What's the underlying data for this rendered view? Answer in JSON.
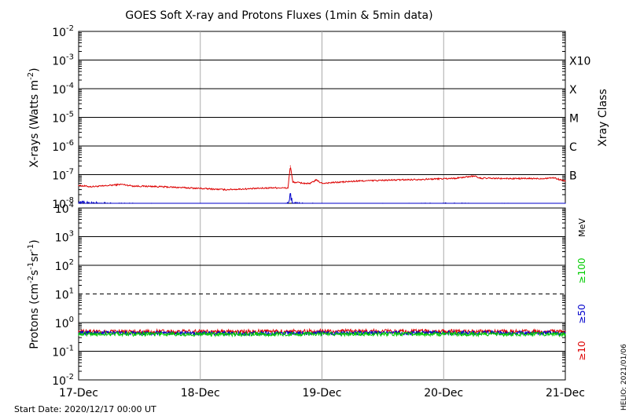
{
  "title": "GOES Soft X-ray and Protons Fluxes   (1min & 5min data)",
  "start_date": "Start Date: 2020/12/17 00:00 UT",
  "side_stamp": "HELIO: 2021/01/06",
  "chart_data": [
    {
      "type": "line",
      "panel": "xray",
      "y_label_main": "X-rays (Watts m",
      "y_label_sup": "-2",
      "y_label_end": ")",
      "y_scale": "log",
      "ylim": [
        1e-08,
        0.01
      ],
      "y_ticks": [
        {
          "base": "10",
          "exp": "-2",
          "value": 0.01
        },
        {
          "base": "10",
          "exp": "-3",
          "value": 0.001
        },
        {
          "base": "10",
          "exp": "-4",
          "value": 0.0001
        },
        {
          "base": "10",
          "exp": "-5",
          "value": 1e-05
        },
        {
          "base": "10",
          "exp": "-6",
          "value": 1e-06
        },
        {
          "base": "10",
          "exp": "-7",
          "value": 1e-07
        },
        {
          "base": "10",
          "exp": "-8",
          "value": 1e-08
        }
      ],
      "class_axis_label": "Xray Class",
      "class_labels": [
        {
          "label": "X10",
          "value": 0.001
        },
        {
          "label": "X",
          "value": 0.0001
        },
        {
          "label": "M",
          "value": 1e-05
        },
        {
          "label": "C",
          "value": 1e-06
        },
        {
          "label": "B",
          "value": 1e-07
        }
      ],
      "series": [
        {
          "color": "#dd0000",
          "x": [
            0.0,
            0.1,
            0.2,
            0.35,
            0.45,
            0.6,
            0.8,
            1.0,
            1.2,
            1.4,
            1.6,
            1.72,
            1.74,
            1.76,
            1.9,
            1.95,
            2.0,
            2.3,
            2.6,
            2.9,
            3.1,
            3.25,
            3.3,
            3.5,
            3.8,
            3.9,
            4.0
          ],
          "y": [
            4.2e-08,
            3.8e-08,
            4e-08,
            4.6e-08,
            4e-08,
            3.9e-08,
            3.6e-08,
            3.3e-08,
            3e-08,
            3.2e-08,
            3.5e-08,
            3.4e-08,
            2e-07,
            5.5e-08,
            4.8e-08,
            6.5e-08,
            5e-08,
            6e-08,
            6.5e-08,
            7e-08,
            7.5e-08,
            9e-08,
            7.5e-08,
            7.3e-08,
            7.3e-08,
            7.8e-08,
            6e-08
          ]
        },
        {
          "color": "#0000cc",
          "x": [
            0.0,
            0.2,
            0.6,
            1.0,
            1.4,
            1.7,
            1.72,
            1.74,
            1.76,
            2.0,
            2.5,
            3.0,
            3.5,
            4.0
          ],
          "y": [
            1e-08,
            9e-09,
            8e-09,
            7.5e-09,
            7.5e-09,
            8e-09,
            9e-09,
            2e-08,
            9e-09,
            8e-09,
            8e-09,
            8.5e-09,
            8.2e-09,
            8e-09
          ]
        }
      ]
    },
    {
      "type": "line",
      "panel": "protons",
      "y_label_main": "Protons (cm",
      "y_label_sup1": "-2",
      "y_label_mid1": "s",
      "y_label_sup2": "-1",
      "y_label_mid2": "sr",
      "y_label_sup3": "-1",
      "y_label_end": ")",
      "y_scale": "log",
      "ylim": [
        0.01,
        10000
      ],
      "y_ticks": [
        {
          "base": "10",
          "exp": "4",
          "value": 10000
        },
        {
          "base": "10",
          "exp": "3",
          "value": 1000
        },
        {
          "base": "10",
          "exp": "2",
          "value": 100
        },
        {
          "base": "10",
          "exp": "1",
          "value": 10
        },
        {
          "base": "10",
          "exp": "0",
          "value": 1
        },
        {
          "base": "10",
          "exp": "-1",
          "value": 0.1
        },
        {
          "base": "10",
          "exp": "-2",
          "value": 0.01
        }
      ],
      "dashed_threshold": 10,
      "energy_unit": "MeV",
      "energy_labels": [
        {
          "label": "≥100",
          "color": "#00cc00"
        },
        {
          "label": "≥50",
          "color": "#0000cc"
        },
        {
          "label": "≥10",
          "color": "#dd0000"
        }
      ],
      "series": [
        {
          "name": "≥10",
          "color": "#dd0000",
          "x": [
            0.0,
            1.0,
            2.0,
            3.0,
            4.0
          ],
          "y": [
            0.5,
            0.48,
            0.5,
            0.5,
            0.48
          ]
        },
        {
          "name": "≥50",
          "color": "#0000cc",
          "x": [
            0.0,
            1.0,
            2.0,
            3.0,
            4.0
          ],
          "y": [
            0.44,
            0.42,
            0.43,
            0.44,
            0.43
          ]
        },
        {
          "name": "≥100",
          "color": "#00cc00",
          "x": [
            0.0,
            1.0,
            2.0,
            3.0,
            4.0
          ],
          "y": [
            0.4,
            0.39,
            0.4,
            0.4,
            0.39
          ]
        }
      ]
    }
  ],
  "x_axis": {
    "x_unit": "days since 17-Dec 00:00 UT",
    "xlim": [
      0,
      4
    ],
    "ticks": [
      {
        "label": "17-Dec",
        "value": 0
      },
      {
        "label": "18-Dec",
        "value": 1
      },
      {
        "label": "19-Dec",
        "value": 2
      },
      {
        "label": "20-Dec",
        "value": 3
      },
      {
        "label": "21-Dec",
        "value": 4
      }
    ]
  }
}
